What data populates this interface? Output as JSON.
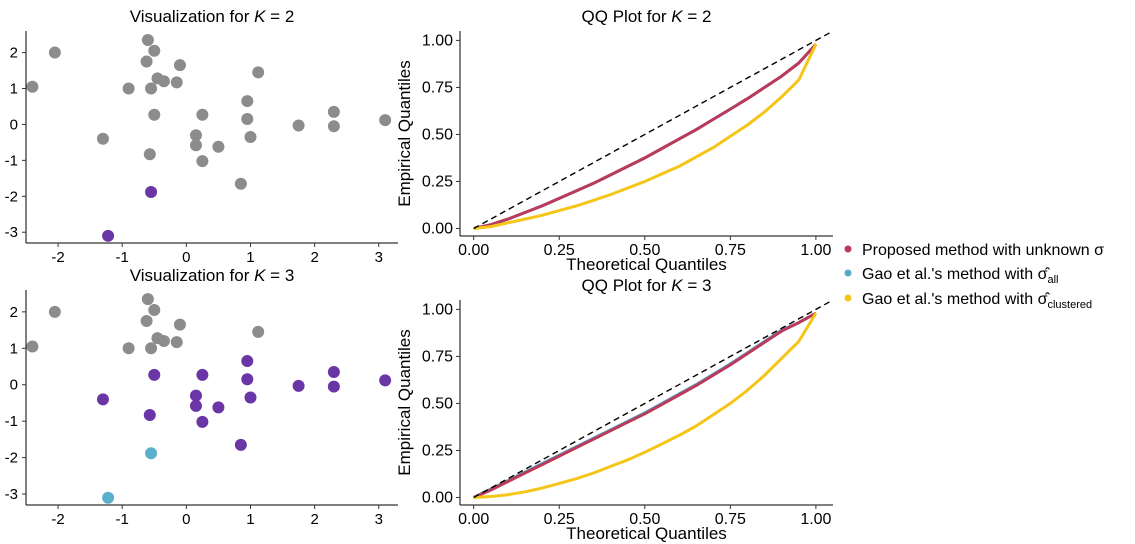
{
  "colors": {
    "grey": "#8c8c8c",
    "purple": "#6a35a5",
    "blue": "#5ab0cc",
    "proposed": "#bb3a5a",
    "gao_all": "#5aa8c8",
    "gao_clustered": "#f5c518",
    "reference": "#000000"
  },
  "legend": {
    "entries": [
      {
        "text": "Proposed method with unknown σ",
        "color_key": "proposed"
      },
      {
        "text": "Gao et al.'s method with",
        "sigma": "σ̂",
        "sub": "all",
        "color_key": "gao_all"
      },
      {
        "text": "Gao et al.'s method with",
        "sigma": "σ̂",
        "sub": "clustered",
        "color_key": "gao_clustered"
      }
    ]
  },
  "chart_data": [
    {
      "type": "scatter",
      "title": "Visualization for",
      "title_k": "K",
      "title_eq": " = 2",
      "xlim": [
        -2.5,
        3.3
      ],
      "ylim": [
        -3.3,
        2.6
      ],
      "xticks": [
        "-2",
        "-1",
        "0",
        "1",
        "2",
        "3"
      ],
      "yticks": [
        "-3",
        "-2",
        "-1",
        "0",
        "1",
        "2"
      ],
      "grey_points": [
        [
          -2.4,
          1.05
        ],
        [
          -2.05,
          2.0
        ],
        [
          -1.3,
          -0.4
        ],
        [
          -0.9,
          1.0
        ],
        [
          -0.62,
          1.75
        ],
        [
          -0.6,
          2.35
        ],
        [
          -0.55,
          1.0
        ],
        [
          -0.5,
          2.05
        ],
        [
          -0.5,
          0.27
        ],
        [
          -0.45,
          1.28
        ],
        [
          -0.35,
          1.2
        ],
        [
          -0.15,
          1.17
        ],
        [
          -0.1,
          1.65
        ],
        [
          0.15,
          -0.3
        ],
        [
          0.15,
          -0.58
        ],
        [
          0.25,
          0.27
        ],
        [
          0.25,
          -1.02
        ],
        [
          0.5,
          -0.62
        ],
        [
          0.85,
          -1.65
        ],
        [
          0.95,
          0.65
        ],
        [
          0.95,
          0.15
        ],
        [
          1.0,
          -0.35
        ],
        [
          1.12,
          1.45
        ],
        [
          1.75,
          -0.03
        ],
        [
          2.3,
          0.35
        ],
        [
          2.3,
          -0.05
        ],
        [
          3.1,
          0.12
        ],
        [
          -0.57,
          -0.83
        ]
      ],
      "purple_points": [
        [
          -0.55,
          -1.88
        ],
        [
          -1.22,
          -3.1
        ]
      ],
      "blue_points": []
    },
    {
      "type": "scatter",
      "title": "Visualization for",
      "title_k": "K",
      "title_eq": " = 3",
      "xlim": [
        -2.5,
        3.3
      ],
      "ylim": [
        -3.3,
        2.6
      ],
      "xticks": [
        "-2",
        "-1",
        "0",
        "1",
        "2",
        "3"
      ],
      "yticks": [
        "-3",
        "-2",
        "-1",
        "0",
        "1",
        "2"
      ],
      "grey_points": [
        [
          -2.4,
          1.05
        ],
        [
          -2.05,
          2.0
        ],
        [
          -0.9,
          1.0
        ],
        [
          -0.62,
          1.75
        ],
        [
          -0.6,
          2.35
        ],
        [
          -0.55,
          1.0
        ],
        [
          -0.5,
          2.05
        ],
        [
          -0.45,
          1.28
        ],
        [
          -0.35,
          1.2
        ],
        [
          -0.15,
          1.17
        ],
        [
          -0.1,
          1.65
        ],
        [
          1.12,
          1.45
        ]
      ],
      "purple_points": [
        [
          -1.3,
          -0.4
        ],
        [
          -0.5,
          0.27
        ],
        [
          -0.57,
          -0.83
        ],
        [
          0.15,
          -0.3
        ],
        [
          0.15,
          -0.58
        ],
        [
          0.25,
          0.27
        ],
        [
          0.25,
          -1.02
        ],
        [
          0.5,
          -0.62
        ],
        [
          0.85,
          -1.65
        ],
        [
          0.95,
          0.65
        ],
        [
          0.95,
          0.15
        ],
        [
          1.0,
          -0.35
        ],
        [
          1.75,
          -0.03
        ],
        [
          2.3,
          0.35
        ],
        [
          2.3,
          -0.05
        ],
        [
          3.1,
          0.12
        ]
      ],
      "blue_points": [
        [
          -0.55,
          -1.88
        ],
        [
          -1.22,
          -3.1
        ]
      ]
    },
    {
      "type": "line",
      "title": "QQ Plot for",
      "title_k": "K",
      "title_eq": " = 2",
      "xlabel": "Theoretical Quantiles",
      "ylabel": "Empirical Quantiles",
      "xlim": [
        -0.04,
        1.05
      ],
      "ylim": [
        -0.04,
        1.05
      ],
      "xticks": [
        "0.00",
        "0.25",
        "0.50",
        "0.75",
        "1.00"
      ],
      "yticks": [
        "0.00",
        "0.25",
        "0.50",
        "0.75",
        "1.00"
      ],
      "series": [
        {
          "key": "gao_all",
          "x": [
            0,
            0.05,
            0.1,
            0.15,
            0.2,
            0.25,
            0.3,
            0.35,
            0.4,
            0.45,
            0.5,
            0.55,
            0.6,
            0.65,
            0.7,
            0.75,
            0.8,
            0.85,
            0.9,
            0.95,
            1.0
          ],
          "y": [
            0,
            0.02,
            0.05,
            0.085,
            0.12,
            0.16,
            0.2,
            0.24,
            0.285,
            0.33,
            0.375,
            0.425,
            0.475,
            0.525,
            0.58,
            0.635,
            0.69,
            0.75,
            0.81,
            0.88,
            0.98
          ]
        },
        {
          "key": "proposed",
          "x": [
            0,
            0.05,
            0.1,
            0.15,
            0.2,
            0.25,
            0.3,
            0.35,
            0.4,
            0.45,
            0.5,
            0.55,
            0.6,
            0.65,
            0.7,
            0.75,
            0.8,
            0.85,
            0.9,
            0.95,
            1.0
          ],
          "y": [
            0,
            0.02,
            0.05,
            0.085,
            0.12,
            0.16,
            0.2,
            0.24,
            0.285,
            0.33,
            0.375,
            0.425,
            0.475,
            0.525,
            0.58,
            0.635,
            0.69,
            0.75,
            0.81,
            0.88,
            0.98
          ]
        },
        {
          "key": "gao_clustered",
          "x": [
            0,
            0.05,
            0.1,
            0.15,
            0.2,
            0.25,
            0.3,
            0.35,
            0.4,
            0.45,
            0.5,
            0.55,
            0.6,
            0.65,
            0.7,
            0.75,
            0.8,
            0.85,
            0.9,
            0.95,
            1.0
          ],
          "y": [
            0,
            0.01,
            0.03,
            0.05,
            0.07,
            0.095,
            0.12,
            0.15,
            0.18,
            0.215,
            0.25,
            0.29,
            0.33,
            0.38,
            0.43,
            0.49,
            0.55,
            0.62,
            0.7,
            0.79,
            0.98
          ]
        }
      ],
      "reference_line": [
        [
          0,
          0
        ],
        [
          1.05,
          1.05
        ]
      ]
    },
    {
      "type": "line",
      "title": "QQ Plot for",
      "title_k": "K",
      "title_eq": " = 3",
      "xlabel": "Theoretical Quantiles",
      "ylabel": "Empirical Quantiles",
      "xlim": [
        -0.04,
        1.05
      ],
      "ylim": [
        -0.04,
        1.05
      ],
      "xticks": [
        "0.00",
        "0.25",
        "0.50",
        "0.75",
        "1.00"
      ],
      "yticks": [
        "0.00",
        "0.25",
        "0.50",
        "0.75",
        "1.00"
      ],
      "series": [
        {
          "key": "gao_all",
          "x": [
            0,
            0.05,
            0.1,
            0.15,
            0.2,
            0.25,
            0.3,
            0.35,
            0.4,
            0.45,
            0.5,
            0.55,
            0.6,
            0.65,
            0.7,
            0.75,
            0.8,
            0.85,
            0.9,
            0.95,
            1.0
          ],
          "y": [
            0,
            0.045,
            0.09,
            0.135,
            0.18,
            0.225,
            0.27,
            0.315,
            0.36,
            0.405,
            0.45,
            0.5,
            0.55,
            0.6,
            0.655,
            0.71,
            0.77,
            0.83,
            0.89,
            0.93,
            0.98
          ]
        },
        {
          "key": "proposed",
          "x": [
            0,
            0.05,
            0.1,
            0.15,
            0.2,
            0.25,
            0.3,
            0.35,
            0.4,
            0.45,
            0.5,
            0.55,
            0.6,
            0.65,
            0.7,
            0.75,
            0.8,
            0.85,
            0.9,
            0.95,
            1.0
          ],
          "y": [
            0,
            0.04,
            0.085,
            0.13,
            0.175,
            0.22,
            0.265,
            0.31,
            0.355,
            0.4,
            0.445,
            0.495,
            0.545,
            0.595,
            0.65,
            0.705,
            0.765,
            0.825,
            0.885,
            0.93,
            0.98
          ]
        },
        {
          "key": "gao_clustered",
          "x": [
            0,
            0.05,
            0.1,
            0.15,
            0.2,
            0.25,
            0.3,
            0.35,
            0.4,
            0.45,
            0.5,
            0.55,
            0.6,
            0.65,
            0.7,
            0.75,
            0.8,
            0.85,
            0.9,
            0.95,
            1.0
          ],
          "y": [
            0,
            0.005,
            0.015,
            0.03,
            0.05,
            0.075,
            0.1,
            0.13,
            0.165,
            0.2,
            0.24,
            0.285,
            0.33,
            0.38,
            0.44,
            0.5,
            0.57,
            0.65,
            0.74,
            0.83,
            0.98
          ]
        }
      ],
      "reference_line": [
        [
          0,
          0
        ],
        [
          1.05,
          1.05
        ]
      ]
    }
  ]
}
